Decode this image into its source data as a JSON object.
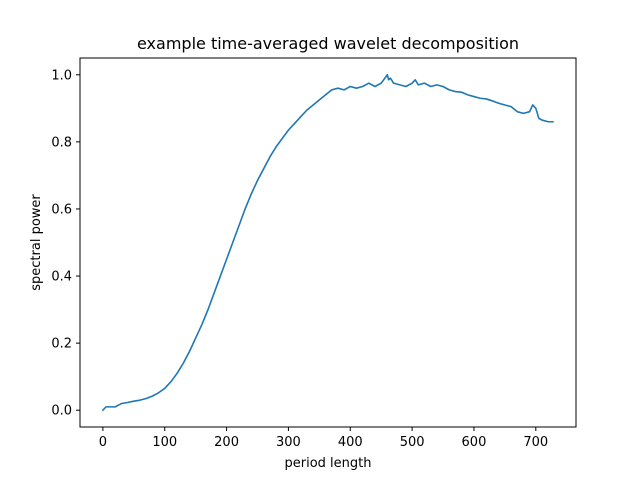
{
  "chart_data": {
    "type": "line",
    "title": "example time-averaged wavelet decomposition",
    "xlabel": "period length",
    "ylabel": "spectral power",
    "xlim": [
      -37,
      765
    ],
    "ylim": [
      -0.05,
      1.05
    ],
    "xticks": [
      0,
      100,
      200,
      300,
      400,
      500,
      600,
      700
    ],
    "yticks": [
      0.0,
      0.2,
      0.4,
      0.6,
      0.8,
      1.0
    ],
    "xtick_labels": [
      "0",
      "100",
      "200",
      "300",
      "400",
      "500",
      "600",
      "700"
    ],
    "ytick_labels": [
      "0.0",
      "0.2",
      "0.4",
      "0.6",
      "0.8",
      "1.0"
    ],
    "grid": false,
    "legend": "none",
    "colors": {
      "line": "#1f77b4"
    },
    "series": [
      {
        "x": [
          0,
          5,
          10,
          20,
          25,
          30,
          40,
          50,
          60,
          70,
          80,
          90,
          100,
          110,
          120,
          130,
          140,
          150,
          160,
          170,
          180,
          190,
          200,
          210,
          220,
          230,
          240,
          250,
          260,
          270,
          280,
          290,
          300,
          310,
          320,
          330,
          340,
          350,
          360,
          370,
          380,
          390,
          395,
          400,
          410,
          420,
          425,
          430,
          440,
          450,
          460,
          462,
          465,
          470,
          480,
          490,
          500,
          505,
          510,
          520,
          530,
          540,
          550,
          560,
          570,
          580,
          590,
          600,
          610,
          620,
          630,
          640,
          650,
          660,
          670,
          680,
          690,
          695,
          700,
          705,
          710,
          720,
          728
        ],
        "y": [
          0.0,
          0.01,
          0.01,
          0.01,
          0.015,
          0.02,
          0.023,
          0.027,
          0.03,
          0.035,
          0.042,
          0.052,
          0.065,
          0.085,
          0.11,
          0.14,
          0.175,
          0.215,
          0.255,
          0.3,
          0.35,
          0.4,
          0.45,
          0.5,
          0.55,
          0.6,
          0.645,
          0.685,
          0.72,
          0.755,
          0.785,
          0.81,
          0.835,
          0.855,
          0.875,
          0.895,
          0.91,
          0.925,
          0.94,
          0.955,
          0.96,
          0.955,
          0.96,
          0.965,
          0.96,
          0.965,
          0.97,
          0.975,
          0.965,
          0.975,
          1.0,
          0.985,
          0.99,
          0.975,
          0.97,
          0.965,
          0.975,
          0.985,
          0.97,
          0.975,
          0.965,
          0.97,
          0.965,
          0.955,
          0.95,
          0.948,
          0.94,
          0.935,
          0.93,
          0.928,
          0.922,
          0.915,
          0.91,
          0.905,
          0.89,
          0.885,
          0.89,
          0.91,
          0.9,
          0.87,
          0.865,
          0.86,
          0.86
        ]
      }
    ]
  }
}
